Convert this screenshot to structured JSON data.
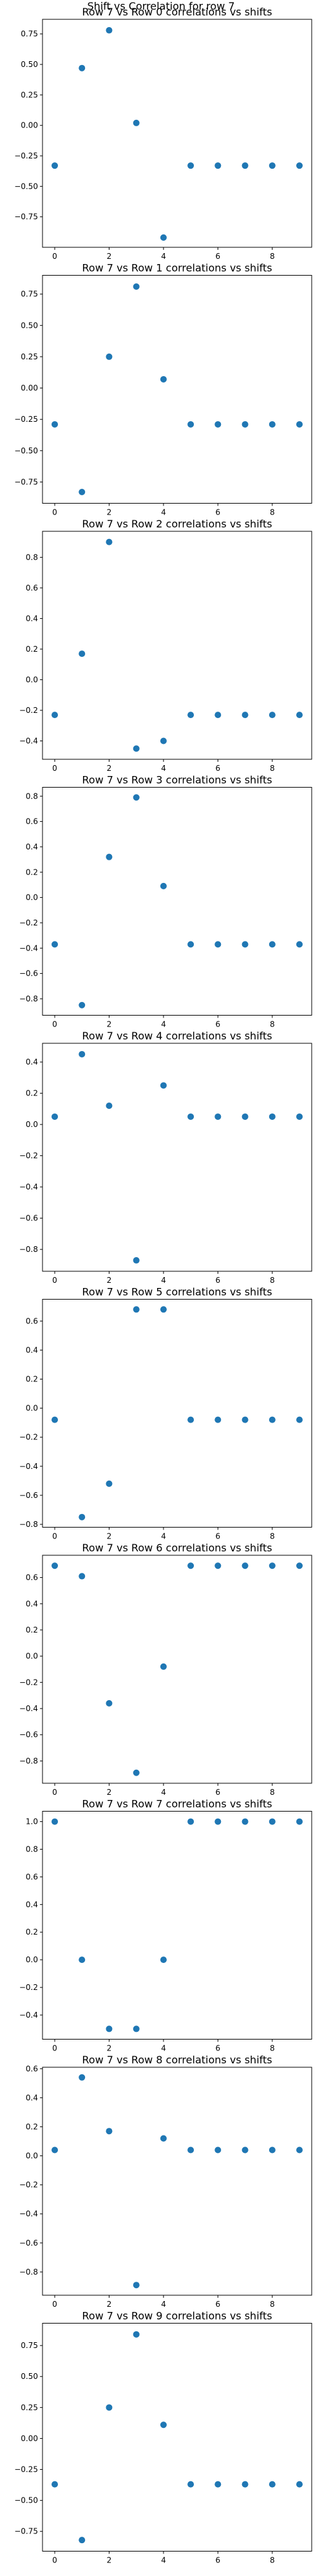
{
  "figure": {
    "suptitle": "Shift vs Correlation for row 7",
    "marker_color": "#1f77b4"
  },
  "chart_data": [
    {
      "type": "scatter",
      "title": "Row 7 vs Row 0 correlations vs shifts",
      "x": [
        0,
        1,
        2,
        3,
        4,
        5,
        6,
        7,
        8,
        9
      ],
      "y": [
        -0.33,
        0.47,
        0.78,
        0.02,
        -0.92,
        -0.33,
        -0.33,
        -0.33,
        -0.33,
        -0.33
      ],
      "xlim": [
        -0.45,
        9.45
      ],
      "ylim": [
        -1.0,
        0.87
      ],
      "xticks": [
        0,
        2,
        4,
        6,
        8
      ],
      "xtick_labels": [
        "0",
        "2",
        "4",
        "6",
        "8"
      ],
      "yticks": [
        0.75,
        0.5,
        0.25,
        0.0,
        -0.25,
        -0.5,
        -0.75
      ],
      "ytick_labels": [
        "0.75",
        "0.50",
        "0.25",
        "0.00",
        "−0.25",
        "−0.50",
        "−0.75"
      ]
    },
    {
      "type": "scatter",
      "title": "Row 7 vs Row 1 correlations vs shifts",
      "x": [
        0,
        1,
        2,
        3,
        4,
        5,
        6,
        7,
        8,
        9
      ],
      "y": [
        -0.29,
        -0.83,
        0.25,
        0.81,
        0.07,
        -0.29,
        -0.29,
        -0.29,
        -0.29,
        -0.29
      ],
      "xlim": [
        -0.45,
        9.45
      ],
      "ylim": [
        -0.92,
        0.9
      ],
      "xticks": [
        0,
        2,
        4,
        6,
        8
      ],
      "xtick_labels": [
        "0",
        "2",
        "4",
        "6",
        "8"
      ],
      "yticks": [
        0.75,
        0.5,
        0.25,
        0.0,
        -0.25,
        -0.5,
        -0.75
      ],
      "ytick_labels": [
        "0.75",
        "0.50",
        "0.25",
        "0.00",
        "−0.25",
        "−0.50",
        "−0.75"
      ]
    },
    {
      "type": "scatter",
      "title": "Row 7 vs Row 2 correlations vs shifts",
      "x": [
        0,
        1,
        2,
        3,
        4,
        5,
        6,
        7,
        8,
        9
      ],
      "y": [
        -0.23,
        0.17,
        0.9,
        -0.45,
        -0.4,
        -0.23,
        -0.23,
        -0.23,
        -0.23,
        -0.23
      ],
      "xlim": [
        -0.45,
        9.45
      ],
      "ylim": [
        -0.52,
        0.97
      ],
      "xticks": [
        0,
        2,
        4,
        6,
        8
      ],
      "xtick_labels": [
        "0",
        "2",
        "4",
        "6",
        "8"
      ],
      "yticks": [
        0.8,
        0.6,
        0.4,
        0.2,
        0.0,
        -0.2,
        -0.4
      ],
      "ytick_labels": [
        "0.8",
        "0.6",
        "0.4",
        "0.2",
        "0.0",
        "−0.2",
        "−0.4"
      ]
    },
    {
      "type": "scatter",
      "title": "Row 7 vs Row 3 correlations vs shifts",
      "x": [
        0,
        1,
        2,
        3,
        4,
        5,
        6,
        7,
        8,
        9
      ],
      "y": [
        -0.37,
        -0.85,
        0.32,
        0.79,
        0.09,
        -0.37,
        -0.37,
        -0.37,
        -0.37,
        -0.37
      ],
      "xlim": [
        -0.45,
        9.45
      ],
      "ylim": [
        -0.93,
        0.87
      ],
      "xticks": [
        0,
        2,
        4,
        6,
        8
      ],
      "xtick_labels": [
        "0",
        "2",
        "4",
        "6",
        "8"
      ],
      "yticks": [
        0.8,
        0.6,
        0.4,
        0.2,
        0.0,
        -0.2,
        -0.4,
        -0.6,
        -0.8
      ],
      "ytick_labels": [
        "0.8",
        "0.6",
        "0.4",
        "0.2",
        "0.0",
        "−0.2",
        "−0.4",
        "−0.6",
        "−0.8"
      ]
    },
    {
      "type": "scatter",
      "title": "Row 7 vs Row 4 correlations vs shifts",
      "x": [
        0,
        1,
        2,
        3,
        4,
        5,
        6,
        7,
        8,
        9
      ],
      "y": [
        0.05,
        0.45,
        0.12,
        -0.87,
        0.25,
        0.05,
        0.05,
        0.05,
        0.05,
        0.05
      ],
      "xlim": [
        -0.45,
        9.45
      ],
      "ylim": [
        -0.94,
        0.52
      ],
      "xticks": [
        0,
        2,
        4,
        6,
        8
      ],
      "xtick_labels": [
        "0",
        "2",
        "4",
        "6",
        "8"
      ],
      "yticks": [
        0.4,
        0.2,
        0.0,
        -0.2,
        -0.4,
        -0.6,
        -0.8
      ],
      "ytick_labels": [
        "0.4",
        "0.2",
        "0.0",
        "−0.2",
        "−0.4",
        "−0.6",
        "−0.8"
      ]
    },
    {
      "type": "scatter",
      "title": "Row 7 vs Row 5 correlations vs shifts",
      "x": [
        0,
        1,
        2,
        3,
        4,
        5,
        6,
        7,
        8,
        9
      ],
      "y": [
        -0.08,
        -0.75,
        -0.52,
        0.68,
        0.68,
        -0.08,
        -0.08,
        -0.08,
        -0.08,
        -0.08
      ],
      "xlim": [
        -0.45,
        9.45
      ],
      "ylim": [
        -0.82,
        0.75
      ],
      "xticks": [
        0,
        2,
        4,
        6,
        8
      ],
      "xtick_labels": [
        "0",
        "2",
        "4",
        "6",
        "8"
      ],
      "yticks": [
        0.6,
        0.4,
        0.2,
        0.0,
        -0.2,
        -0.4,
        -0.6,
        -0.8
      ],
      "ytick_labels": [
        "0.6",
        "0.4",
        "0.2",
        "0.0",
        "−0.2",
        "−0.4",
        "−0.6",
        "−0.8"
      ]
    },
    {
      "type": "scatter",
      "title": "Row 7 vs Row 6 correlations vs shifts",
      "x": [
        0,
        1,
        2,
        3,
        4,
        5,
        6,
        7,
        8,
        9
      ],
      "y": [
        0.69,
        0.61,
        -0.36,
        -0.89,
        -0.08,
        0.69,
        0.69,
        0.69,
        0.69,
        0.69
      ],
      "xlim": [
        -0.45,
        9.45
      ],
      "ylim": [
        -0.97,
        0.77
      ],
      "xticks": [
        0,
        2,
        4,
        6,
        8
      ],
      "xtick_labels": [
        "0",
        "2",
        "4",
        "6",
        "8"
      ],
      "yticks": [
        0.6,
        0.4,
        0.2,
        0.0,
        -0.2,
        -0.4,
        -0.6,
        -0.8
      ],
      "ytick_labels": [
        "0.6",
        "0.4",
        "0.2",
        "0.0",
        "−0.2",
        "−0.4",
        "−0.6",
        "−0.8"
      ]
    },
    {
      "type": "scatter",
      "title": "Row 7 vs Row 7 correlations vs shifts",
      "x": [
        0,
        1,
        2,
        3,
        4,
        5,
        6,
        7,
        8,
        9
      ],
      "y": [
        1.0,
        0.0,
        -0.5,
        -0.5,
        0.0,
        1.0,
        1.0,
        1.0,
        1.0,
        1.0
      ],
      "xlim": [
        -0.45,
        9.45
      ],
      "ylim": [
        -0.575,
        1.075
      ],
      "xticks": [
        0,
        2,
        4,
        6,
        8
      ],
      "xtick_labels": [
        "0",
        "2",
        "4",
        "6",
        "8"
      ],
      "yticks": [
        1.0,
        0.8,
        0.6,
        0.4,
        0.2,
        0.0,
        -0.2,
        -0.4
      ],
      "ytick_labels": [
        "1.0",
        "0.8",
        "0.6",
        "0.4",
        "0.2",
        "0.0",
        "−0.2",
        "−0.4"
      ]
    },
    {
      "type": "scatter",
      "title": "Row 7 vs Row 8 correlations vs shifts",
      "x": [
        0,
        1,
        2,
        3,
        4,
        5,
        6,
        7,
        8,
        9
      ],
      "y": [
        0.04,
        0.54,
        0.17,
        -0.89,
        0.12,
        0.04,
        0.04,
        0.04,
        0.04,
        0.04
      ],
      "xlim": [
        -0.45,
        9.45
      ],
      "ylim": [
        -0.96,
        0.61
      ],
      "xticks": [
        0,
        2,
        4,
        6,
        8
      ],
      "xtick_labels": [
        "0",
        "2",
        "4",
        "6",
        "8"
      ],
      "yticks": [
        0.6,
        0.4,
        0.2,
        0.0,
        -0.2,
        -0.4,
        -0.6,
        -0.8
      ],
      "ytick_labels": [
        "0.6",
        "0.4",
        "0.2",
        "0.0",
        "−0.2",
        "−0.4",
        "−0.6",
        "−0.8"
      ]
    },
    {
      "type": "scatter",
      "title": "Row 7 vs Row 9 correlations vs shifts",
      "x": [
        0,
        1,
        2,
        3,
        4,
        5,
        6,
        7,
        8,
        9
      ],
      "y": [
        -0.37,
        -0.82,
        0.25,
        0.84,
        0.11,
        -0.37,
        -0.37,
        -0.37,
        -0.37,
        -0.37
      ],
      "xlim": [
        -0.45,
        9.45
      ],
      "ylim": [
        -0.91,
        0.93
      ],
      "xticks": [
        0,
        2,
        4,
        6,
        8
      ],
      "xtick_labels": [
        "0",
        "2",
        "4",
        "6",
        "8"
      ],
      "yticks": [
        0.75,
        0.5,
        0.25,
        0.0,
        -0.25,
        -0.5,
        -0.75
      ],
      "ytick_labels": [
        "0.75",
        "0.50",
        "0.25",
        "0.00",
        "−0.25",
        "−0.50",
        "−0.75"
      ]
    }
  ]
}
